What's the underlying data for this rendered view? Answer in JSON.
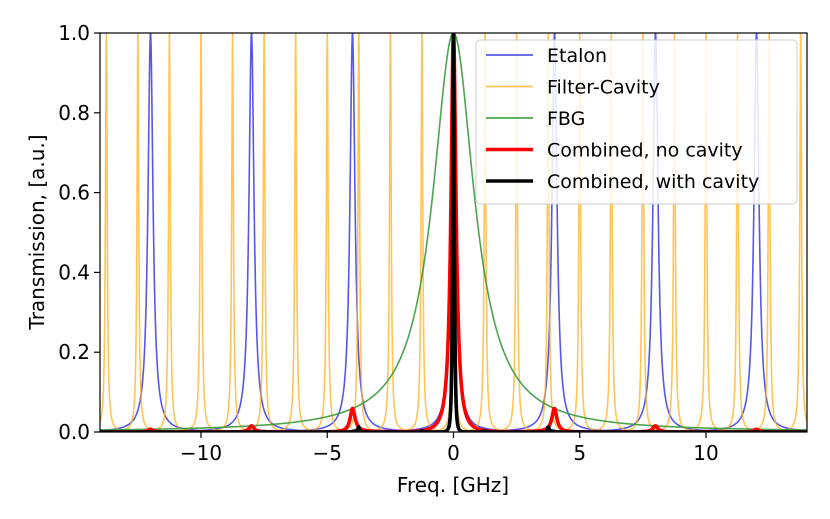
{
  "chart_data": {
    "type": "line",
    "title": "",
    "xlabel": "Freq. [GHz]",
    "ylabel": "Transmission, [a.u.]",
    "xlim": [
      -14,
      14
    ],
    "ylim": [
      0,
      1.0
    ],
    "xticks": [
      -10,
      -5,
      0,
      5,
      10
    ],
    "xtick_labels": [
      "−10",
      "−5",
      "0",
      "5",
      "10"
    ],
    "yticks": [
      0.0,
      0.2,
      0.4,
      0.6,
      0.8,
      1.0
    ],
    "ytick_labels": [
      "0.0",
      "0.2",
      "0.4",
      "0.6",
      "0.8",
      "1.0"
    ],
    "grid": false,
    "legend_position": "top-right",
    "series": [
      {
        "name": "Etalon",
        "color": "#3a3ae8",
        "model": "periodic-lorentzian",
        "peak_spacing_ghz": 4.0,
        "peak_center_ghz": 0,
        "half_width_ghz": 0.12,
        "peak_value": 1.0
      },
      {
        "name": "Filter-Cavity",
        "color": "#ffb020",
        "model": "periodic-lorentzian",
        "peak_spacing_ghz": 1.25,
        "peak_center_ghz": 0,
        "half_width_ghz": 0.04,
        "peak_value": 1.0
      },
      {
        "name": "FBG",
        "color": "#3b9a3b",
        "model": "lorentzian",
        "peak_center_ghz": 0,
        "half_width_ghz": 1.0,
        "peak_value": 1.0
      },
      {
        "name": "Combined, no cavity",
        "color": "#ff0000",
        "model": "product",
        "of": [
          "Etalon",
          "FBG"
        ],
        "peak_values": [
          {
            "x": -12,
            "y": 0.01
          },
          {
            "x": -8,
            "y": 0.02
          },
          {
            "x": -4,
            "y": 0.08
          },
          {
            "x": 0,
            "y": 1.0
          },
          {
            "x": 4,
            "y": 0.08
          },
          {
            "x": 8,
            "y": 0.02
          },
          {
            "x": 12,
            "y": 0.01
          }
        ]
      },
      {
        "name": "Combined, with cavity",
        "color": "#000000",
        "model": "product",
        "of": [
          "Etalon",
          "Filter-Cavity",
          "FBG"
        ],
        "peak_values": [
          {
            "x": 0,
            "y": 1.0
          }
        ]
      }
    ]
  }
}
